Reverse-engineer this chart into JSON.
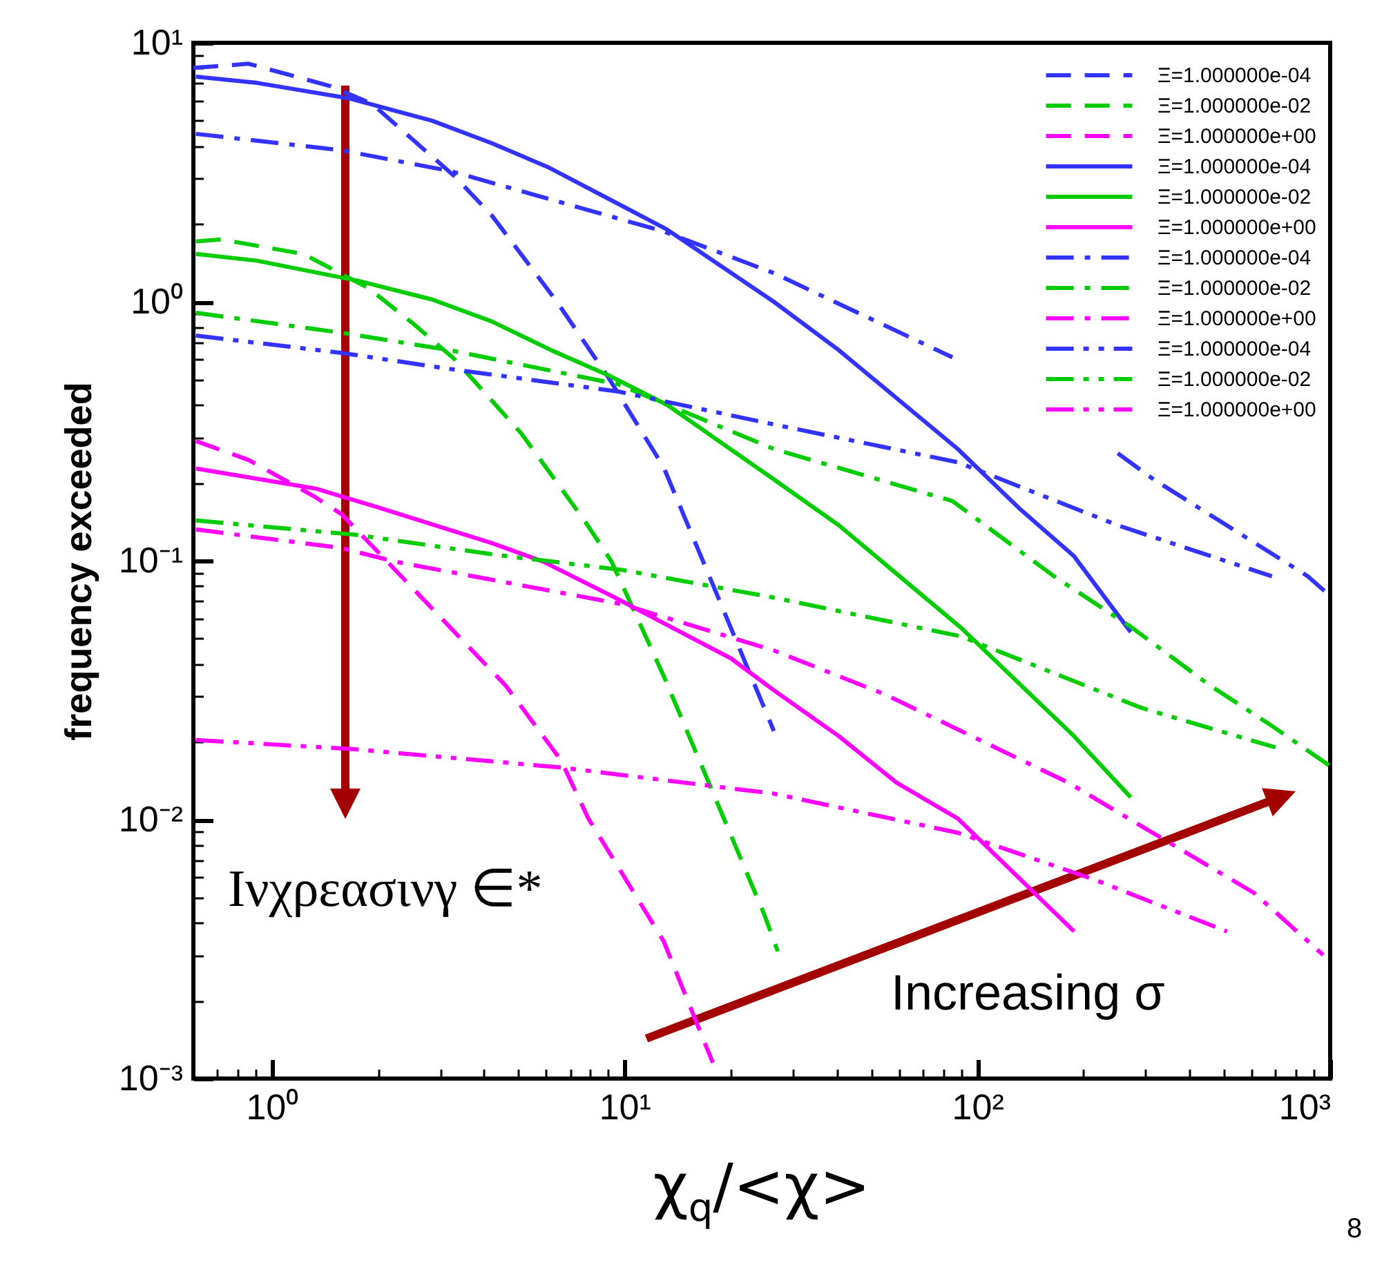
{
  "chart_data": {
    "type": "line",
    "xlabel": "χ$_{q}$/<χ>",
    "ylabel": "frequency exceeded",
    "log": "xy",
    "legend": "top right",
    "grid": false,
    "xlim": [
      0.6,
      1000
    ],
    "ylim": [
      0.001,
      10
    ],
    "xticks": [
      {
        "value": 0.7,
        "label": null
      },
      {
        "value": 0.8,
        "label": null
      },
      {
        "value": 0.9,
        "label": null
      },
      {
        "value": 1,
        "label": "10⁰"
      },
      {
        "value": 2,
        "label": null
      },
      {
        "value": 3,
        "label": null
      },
      {
        "value": 4,
        "label": null
      },
      {
        "value": 5,
        "label": null
      },
      {
        "value": 6,
        "label": null
      },
      {
        "value": 7,
        "label": null
      },
      {
        "value": 8,
        "label": null
      },
      {
        "value": 9,
        "label": null
      },
      {
        "value": 10,
        "label": "10¹"
      },
      {
        "value": 20,
        "label": null
      },
      {
        "value": 30,
        "label": null
      },
      {
        "value": 40,
        "label": null
      },
      {
        "value": 50,
        "label": null
      },
      {
        "value": 60,
        "label": null
      },
      {
        "value": 70,
        "label": null
      },
      {
        "value": 80,
        "label": null
      },
      {
        "value": 90,
        "label": null
      },
      {
        "value": 100,
        "label": "10²"
      },
      {
        "value": 200,
        "label": null
      },
      {
        "value": 300,
        "label": null
      },
      {
        "value": 400,
        "label": null
      },
      {
        "value": 500,
        "label": null
      },
      {
        "value": 600,
        "label": null
      },
      {
        "value": 700,
        "label": null
      },
      {
        "value": 800,
        "label": null
      },
      {
        "value": 900,
        "label": null
      },
      {
        "value": 1000,
        "label": "10³"
      }
    ],
    "yticks": [
      {
        "value": 0.001,
        "label": "10⁻³"
      },
      {
        "value": 0.002,
        "label": null
      },
      {
        "value": 0.003,
        "label": null
      },
      {
        "value": 0.004,
        "label": null
      },
      {
        "value": 0.005,
        "label": null
      },
      {
        "value": 0.006,
        "label": null
      },
      {
        "value": 0.007,
        "label": null
      },
      {
        "value": 0.008,
        "label": null
      },
      {
        "value": 0.009,
        "label": null
      },
      {
        "value": 0.01,
        "label": "10⁻²"
      },
      {
        "value": 0.02,
        "label": null
      },
      {
        "value": 0.03,
        "label": null
      },
      {
        "value": 0.04,
        "label": null
      },
      {
        "value": 0.05,
        "label": null
      },
      {
        "value": 0.06,
        "label": null
      },
      {
        "value": 0.07,
        "label": null
      },
      {
        "value": 0.08,
        "label": null
      },
      {
        "value": 0.09,
        "label": null
      },
      {
        "value": 0.1,
        "label": "10⁻¹"
      },
      {
        "value": 0.2,
        "label": null
      },
      {
        "value": 0.3,
        "label": null
      },
      {
        "value": 0.4,
        "label": null
      },
      {
        "value": 0.5,
        "label": null
      },
      {
        "value": 0.6,
        "label": null
      },
      {
        "value": 0.7,
        "label": null
      },
      {
        "value": 0.8,
        "label": null
      },
      {
        "value": 0.9,
        "label": null
      },
      {
        "value": 1,
        "label": "10⁰"
      },
      {
        "value": 2,
        "label": null
      },
      {
        "value": 3,
        "label": null
      },
      {
        "value": 4,
        "label": null
      },
      {
        "value": 5,
        "label": null
      },
      {
        "value": 6,
        "label": null
      },
      {
        "value": 7,
        "label": null
      },
      {
        "value": 8,
        "label": null
      },
      {
        "value": 9,
        "label": null
      },
      {
        "value": 10,
        "label": "10¹"
      }
    ],
    "annotations": [
      "Ινχρεασινγ ∈*",
      "Increasing σ",
      "8"
    ],
    "series": [
      {
        "name": "Ξ=1.000000e-04",
        "color": "#3333ff",
        "line_style": "dashed",
        "x": [
          0.6,
          0.86,
          1.47,
          1.93,
          3.3,
          4.2,
          6.4,
          9.0,
          12.9,
          17.4,
          26.5
        ],
        "values": [
          8.0,
          8.3,
          6.8,
          5.8,
          3.05,
          2.16,
          1.01,
          0.51,
          0.23,
          0.087,
          0.022
        ]
      },
      {
        "name": "Ξ=1.000000e-02",
        "color": "#00cc00",
        "line_style": "dashed",
        "x": [
          0.61,
          0.72,
          1.23,
          1.88,
          2.5,
          3.3,
          5.1,
          7.7,
          9.2,
          12.9,
          18,
          24.9,
          27.2
        ],
        "values": [
          1.71,
          1.74,
          1.53,
          1.13,
          0.83,
          0.6,
          0.31,
          0.143,
          0.099,
          0.036,
          0.0123,
          0.0043,
          0.0031
        ]
      },
      {
        "name": "Ξ=1.000000e+00",
        "color": "#ff00ff",
        "line_style": "dashed",
        "x": [
          0.61,
          0.86,
          1.33,
          1.58,
          2.16,
          3.3,
          4.6,
          6.6,
          7.9,
          12.9,
          17.8
        ],
        "values": [
          0.29,
          0.245,
          0.176,
          0.151,
          0.097,
          0.053,
          0.033,
          0.017,
          0.0101,
          0.0034,
          0.00115
        ]
      },
      {
        "name": "Ξ=1.000000e-04",
        "color": "#3333ff",
        "line_style": "solid",
        "x": [
          0.61,
          0.91,
          1.66,
          2.85,
          4.2,
          6.1,
          9.0,
          13.2,
          26.5,
          40.5,
          88,
          131,
          188,
          272
        ],
        "values": [
          7.4,
          7.0,
          6.1,
          5.0,
          4.1,
          3.3,
          2.5,
          1.9,
          1.0,
          0.65,
          0.27,
          0.16,
          0.104,
          0.053
        ]
      },
      {
        "name": "Ξ=1.000000e-02",
        "color": "#00cc00",
        "line_style": "solid",
        "x": [
          0.61,
          0.91,
          1.78,
          2.85,
          4.2,
          6.2,
          9.0,
          13.2,
          26.5,
          40.5,
          90,
          188,
          272
        ],
        "values": [
          1.53,
          1.44,
          1.2,
          1.02,
          0.84,
          0.65,
          0.52,
          0.4,
          0.206,
          0.137,
          0.055,
          0.021,
          0.0122
        ]
      },
      {
        "name": "Ξ=1.000000e+00",
        "color": "#ff00ff",
        "line_style": "solid",
        "x": [
          0.61,
          1.33,
          2.02,
          4.2,
          5.9,
          9.4,
          20,
          26.5,
          40.5,
          59,
          88,
          188
        ],
        "values": [
          0.227,
          0.19,
          0.16,
          0.117,
          0.099,
          0.072,
          0.042,
          0.0316,
          0.021,
          0.0139,
          0.0101,
          0.0037
        ]
      },
      {
        "name": "Ξ=1.000000e-04",
        "color": "#3333ff",
        "line_style": "dashdot",
        "x": [
          0.61,
          1.57,
          3.2,
          12.9,
          26.5,
          85,
          134,
          250,
          316,
          865,
          1000
        ],
        "values": [
          4.45,
          3.85,
          3.2,
          1.87,
          1.29,
          0.61,
          null,
          0.26,
          0.206,
          0.087,
          0.073
        ]
      },
      {
        "name": "Ξ=1.000000e-02",
        "color": "#00cc00",
        "line_style": "dashdot",
        "x": [
          0.61,
          1.57,
          3.2,
          9.6,
          26.5,
          85,
          165,
          275,
          456,
          684,
          1000
        ],
        "values": [
          0.906,
          0.76,
          0.65,
          0.48,
          0.27,
          0.17,
          0.087,
          0.055,
          0.033,
          0.023,
          0.0161
        ]
      },
      {
        "name": "Ξ=1.000000e+00",
        "color": "#ff00ff",
        "line_style": "dashdot",
        "x": [
          0.61,
          1.57,
          2.25,
          9.8,
          26.5,
          54.6,
          181,
          332,
          610,
          955
        ],
        "values": [
          0.132,
          0.112,
          0.099,
          0.068,
          0.045,
          0.0305,
          0.0139,
          0.0085,
          0.0052,
          0.003
        ]
      },
      {
        "name": "Ξ=1.000000e-04",
        "color": "#3333ff",
        "line_style": "dashdotdot",
        "x": [
          0.61,
          1.57,
          3.2,
          9.6,
          26.5,
          88,
          250,
          684
        ],
        "values": [
          0.74,
          0.635,
          0.55,
          0.45,
          0.336,
          0.24,
          0.137,
          0.087
        ]
      },
      {
        "name": "Ξ=1.000000e-02",
        "color": "#00cc00",
        "line_style": "dashdotdot",
        "x": [
          0.61,
          1.72,
          4.4,
          9.9,
          26.5,
          90,
          292,
          700
        ],
        "values": [
          0.143,
          0.126,
          0.105,
          0.092,
          0.072,
          0.051,
          0.027,
          0.019
        ]
      },
      {
        "name": "Ξ=1.000000e+00",
        "color": "#ff00ff",
        "line_style": "dashdotdot",
        "x": [
          0.61,
          1.72,
          6.6,
          26.5,
          88,
          212,
          510
        ],
        "values": [
          0.0203,
          0.0187,
          0.0159,
          0.0126,
          0.0089,
          0.0059,
          0.0037
        ]
      }
    ]
  }
}
